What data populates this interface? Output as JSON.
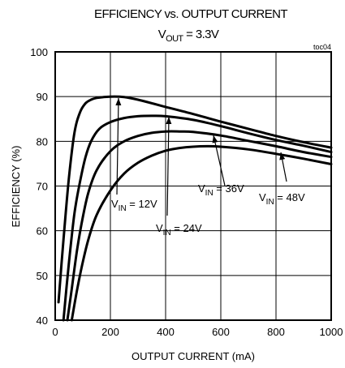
{
  "chart_data": {
    "type": "line",
    "title": "EFFICIENCY vs. OUTPUT CURRENT",
    "subtitle": {
      "prefix": "V",
      "sub": "OUT",
      "suffix": " = 3.3V"
    },
    "tag": "toc04",
    "xlabel": "OUTPUT CURRENT (mA)",
    "ylabel": "EFFICIENCY (%)",
    "xlim": [
      0,
      1000
    ],
    "ylim": [
      40,
      100
    ],
    "xticks": [
      0,
      200,
      400,
      600,
      800,
      1000
    ],
    "yticks": [
      40,
      50,
      60,
      70,
      80,
      90,
      100
    ],
    "grid": true,
    "series": [
      {
        "name": "VIN = 12V",
        "label": {
          "prefix": "V",
          "sub": "IN",
          "suffix": " = 12V"
        },
        "x": [
          12,
          30,
          50,
          70,
          90,
          110,
          130,
          150,
          200,
          250,
          300,
          400,
          500,
          600,
          700,
          800,
          900,
          1000
        ],
        "y": [
          44,
          58,
          72,
          82,
          86.5,
          88.5,
          89.3,
          89.7,
          90,
          89.9,
          89.3,
          87.7,
          86.1,
          84.4,
          82.8,
          81.2,
          79.8,
          78.6
        ]
      },
      {
        "name": "VIN = 24V",
        "label": {
          "prefix": "V",
          "sub": "IN",
          "suffix": " = 24V"
        },
        "x": [
          30,
          50,
          70,
          90,
          110,
          130,
          160,
          200,
          250,
          300,
          350,
          400,
          500,
          600,
          700,
          800,
          900,
          1000
        ],
        "y": [
          40,
          53,
          64,
          71,
          76.5,
          80,
          82.8,
          84.3,
          85.2,
          85.6,
          85.7,
          85.6,
          84.8,
          83.4,
          81.8,
          80.3,
          79,
          77.6
        ]
      },
      {
        "name": "VIN = 36V",
        "label": {
          "prefix": "V",
          "sub": "IN",
          "suffix": " = 36V"
        },
        "x": [
          44,
          60,
          80,
          100,
          120,
          150,
          200,
          250,
          300,
          350,
          400,
          450,
          500,
          600,
          700,
          800,
          900,
          1000
        ],
        "y": [
          40,
          47,
          56,
          63,
          68.5,
          73.5,
          77.8,
          80,
          81.2,
          81.9,
          82.2,
          82.2,
          82.1,
          81.3,
          80.1,
          78.9,
          77.6,
          76.5
        ]
      },
      {
        "name": "VIN = 48V",
        "label": {
          "prefix": "V",
          "sub": "IN",
          "suffix": " = 48V"
        },
        "x": [
          60,
          80,
          100,
          120,
          150,
          200,
          250,
          300,
          350,
          400,
          450,
          500,
          550,
          600,
          700,
          800,
          900,
          1000
        ],
        "y": [
          40,
          47,
          53,
          58,
          63.5,
          69,
          72.8,
          75.2,
          76.8,
          77.9,
          78.5,
          78.8,
          78.9,
          78.8,
          78.2,
          77.2,
          76.1,
          74.9
        ]
      }
    ]
  }
}
